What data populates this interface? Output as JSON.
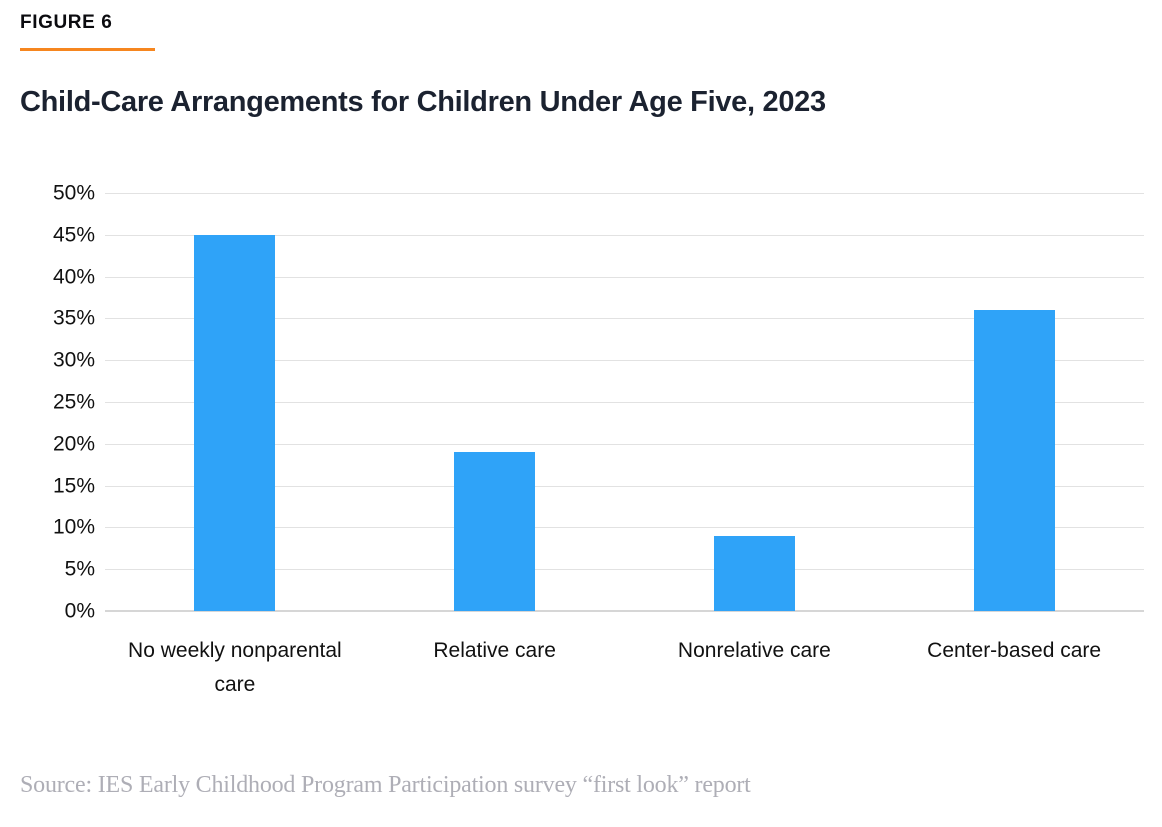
{
  "header": {
    "figure_label": "FIGURE 6",
    "title": "Child-Care Arrangements for Children Under Age Five, 2023"
  },
  "chart_data": {
    "type": "bar",
    "title": "Child-Care Arrangements for Children Under Age Five, 2023",
    "categories": [
      "No weekly nonparental care",
      "Relative care",
      "Nonrelative care",
      "Center-based care"
    ],
    "values": [
      45,
      19,
      9,
      36
    ],
    "unit": "%",
    "xlabel": "",
    "ylabel": "",
    "ylim": [
      0,
      50
    ],
    "ytick_step": 5,
    "ytick_labels": [
      "0%",
      "5%",
      "10%",
      "15%",
      "20%",
      "25%",
      "30%",
      "35%",
      "40%",
      "45%",
      "50%"
    ],
    "grid": true,
    "legend": false,
    "bar_color": "#2fa3f8",
    "gridline_color": "#e2e2e2"
  },
  "footer": {
    "source": "Source: IES Early Childhood Program Participation survey “first look” report"
  },
  "colors": {
    "accent_orange": "#f6861f",
    "bar_blue": "#2fa3f8",
    "title_text": "#1b2230",
    "axis_text": "#111111",
    "source_text": "#aeaeb6"
  }
}
